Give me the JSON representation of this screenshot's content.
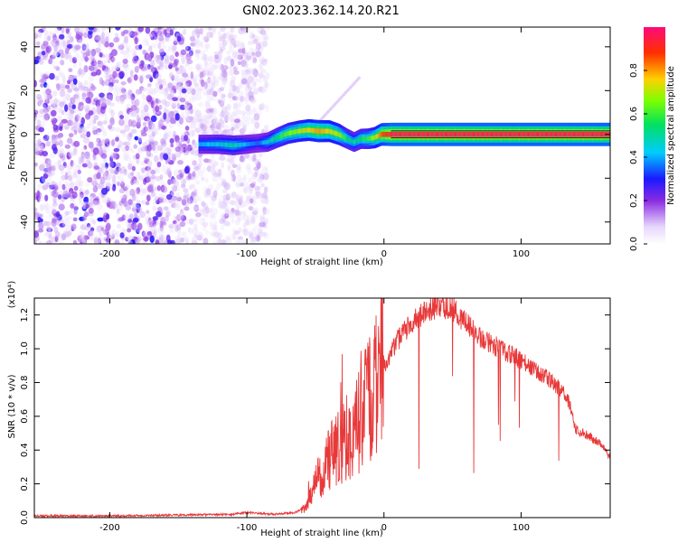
{
  "title": "GN02.2023.362.14.20.R21",
  "chart_data": [
    {
      "type": "heatmap",
      "xlabel": "Height of straight line (km)",
      "ylabel": "Frequency (Hz)",
      "xlim": [
        -255,
        165
      ],
      "ylim": [
        -50,
        49
      ],
      "xticks": [
        -200,
        -100,
        0,
        100
      ],
      "xtick_labels": [
        "-200",
        "-100",
        "0",
        "100"
      ],
      "yticks": [
        -40,
        -20,
        0,
        20,
        40
      ],
      "ytick_labels": [
        "-40",
        "-20",
        "0",
        "20",
        "40"
      ],
      "colorbar": {
        "label": "Normalized spectral amplitude",
        "range": [
          0,
          1
        ],
        "ticks": [
          0.0,
          0.2,
          0.4,
          0.6,
          0.8
        ],
        "tick_labels": [
          "0.0",
          "0.2",
          "0.4",
          "0.6",
          "0.8"
        ]
      },
      "noise_region_x": [
        -255,
        -85
      ],
      "ridge": {
        "x": [
          -135,
          -120,
          -110,
          -100,
          -92,
          -85,
          -78,
          -70,
          -62,
          -55,
          -48,
          -40,
          -33,
          -27,
          -22,
          -17,
          -12,
          -7,
          -2,
          5,
          165
        ],
        "y": [
          -4.5,
          -4.5,
          -5,
          -4.5,
          -4,
          -3.5,
          -1.5,
          0.5,
          1.5,
          2,
          1.5,
          1.5,
          0,
          -2,
          -3.5,
          -2,
          -2,
          -1.5,
          0,
          0,
          0
        ],
        "amplitude": [
          0.4,
          0.45,
          0.5,
          0.4,
          0.35,
          0.45,
          0.55,
          0.65,
          0.7,
          0.75,
          0.8,
          0.75,
          0.7,
          0.55,
          0.5,
          0.55,
          0.6,
          0.7,
          0.85,
          0.95,
          0.95
        ]
      },
      "grid": false
    },
    {
      "type": "line",
      "xlabel": "Height of straight line (km)",
      "ylabel": "SNR (10 * v/v)",
      "yscale_label": "(x10⁴)",
      "xlim": [
        -255,
        165
      ],
      "ylim": [
        0,
        1.3
      ],
      "xticks": [
        -200,
        -100,
        0,
        100
      ],
      "xtick_labels": [
        "-200",
        "-100",
        "0",
        "100"
      ],
      "yticks": [
        0.0,
        0.2,
        0.4,
        0.6,
        0.8,
        1.0,
        1.2
      ],
      "ytick_labels": [
        "0.0",
        "0.2",
        "0.4",
        "0.6",
        "0.8",
        "1.0",
        "1.2"
      ],
      "series": [
        {
          "color": "#e8393a",
          "x": [
            -255,
            -200,
            -150,
            -110,
            -100,
            -80,
            -65,
            -58,
            -50,
            -40,
            -30,
            -20,
            -10,
            0,
            10,
            20,
            30,
            40,
            50,
            60,
            70,
            80,
            90,
            100,
            110,
            120,
            130,
            135,
            140,
            150,
            160,
            165
          ],
          "y": [
            0.01,
            0.01,
            0.015,
            0.02,
            0.03,
            0.02,
            0.03,
            0.06,
            0.2,
            0.35,
            0.45,
            0.55,
            0.7,
            0.9,
            1.05,
            1.15,
            1.22,
            1.26,
            1.24,
            1.15,
            1.07,
            1.02,
            0.98,
            0.93,
            0.87,
            0.82,
            0.75,
            0.68,
            0.52,
            0.48,
            0.42,
            0.35
          ]
        }
      ],
      "grid": false
    }
  ]
}
